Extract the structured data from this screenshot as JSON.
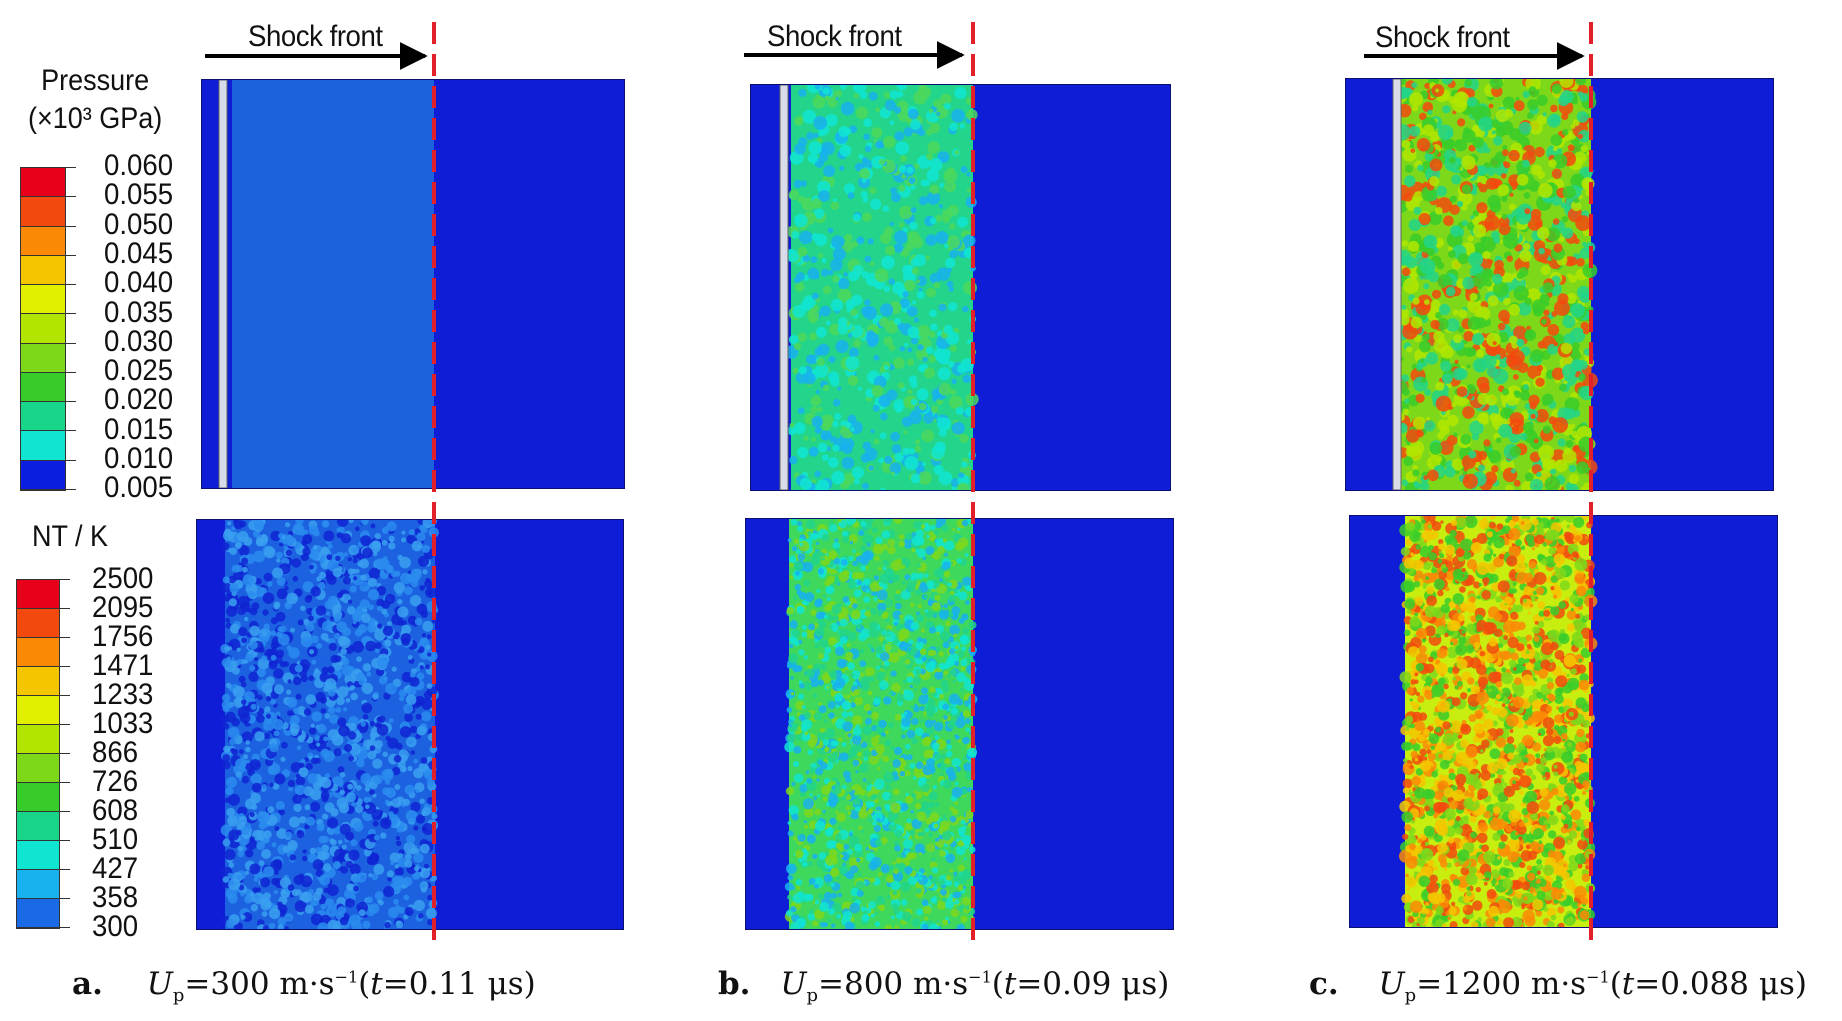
{
  "shock_label": "Shock front",
  "pressure_legend": {
    "title_line1": "Pressure",
    "title_line2": "(×10³ GPa)",
    "values": [
      "0.060",
      "0.055",
      "0.050",
      "0.045",
      "0.040",
      "0.035",
      "0.030",
      "0.025",
      "0.020",
      "0.015",
      "0.010",
      "0.005"
    ]
  },
  "temperature_legend": {
    "title": "NT / K",
    "values": [
      "2500",
      "2095",
      "1756",
      "1471",
      "1233",
      "1033",
      "866",
      "726",
      "608",
      "510",
      "427",
      "358",
      "300"
    ]
  },
  "colors": {
    "scale": [
      "#e8001a",
      "#f24a0e",
      "#fa8a06",
      "#f5c500",
      "#e2f000",
      "#b2e600",
      "#7ed81a",
      "#38cc2a",
      "#18d58a",
      "#10e5d2",
      "#18b2ee",
      "#1a6ae6",
      "#0a1ee2"
    ],
    "background_blue": "#0f1ed6",
    "shock_line": "#e2202a"
  },
  "columns": [
    {
      "letter": "a.",
      "up": "=300 m·s",
      "time": "t",
      "time_value": "=0.11 μs",
      "pressure_fill": "#1a62dc",
      "pressure_speckle": [
        "#1a62dc"
      ],
      "temp_fill": "#1c62e0",
      "temp_speckle": [
        "#0f24d2",
        "#2a8cee",
        "#3aa0f0"
      ]
    },
    {
      "letter": "b.",
      "up": "=800 m·s",
      "time": "t",
      "time_value": "=0.09 μs",
      "pressure_fill": "#22d58a",
      "pressure_speckle": [
        "#10e5d2",
        "#4ed85a",
        "#18b2ee"
      ],
      "temp_fill": "#3ed85c",
      "temp_speckle": [
        "#10e5d2",
        "#7ed81a",
        "#18b2ee",
        "#22d58a"
      ]
    },
    {
      "letter": "c.",
      "up": "=1200 m·s",
      "time": "t",
      "time_value": "=0.088 μs",
      "pressure_fill": "#7ed81a",
      "pressure_speckle": [
        "#38cc2a",
        "#b2e600",
        "#f24a0e",
        "#22d58a"
      ],
      "temp_fill": "#c8ee10",
      "temp_speckle": [
        "#f5c500",
        "#7ed81a",
        "#f24a0e",
        "#38cc2a",
        "#fa8a06"
      ]
    }
  ]
}
